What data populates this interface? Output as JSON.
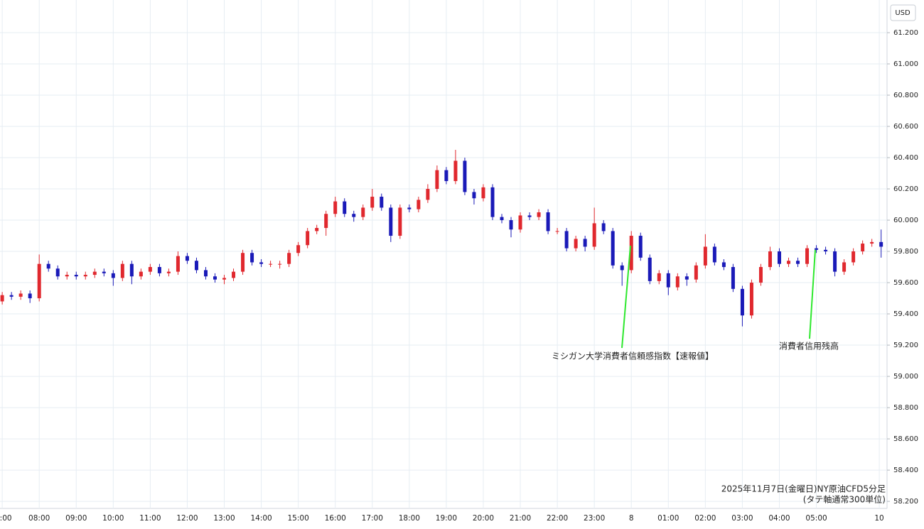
{
  "chart_data": {
    "type": "candlestick",
    "currency": "USD",
    "title": "2025年11月7日(金曜日)NY原油CFD5分足",
    "subtitle": "(タテ軸通常300単位)",
    "up_color": "#e0282e",
    "down_color": "#1a1ab8",
    "annotation_color": "#2ee82e",
    "grid": true,
    "annotations": [
      {
        "text": "ミシガン大学消費者信頼感指数【速報値】"
      },
      {
        "text": "消費者信用残高"
      }
    ],
    "x": [
      0,
      0.25,
      0.5,
      0.75,
      1,
      1.25,
      1.5,
      1.75,
      2,
      2.25,
      2.5,
      2.75,
      3,
      3.25,
      3.5,
      3.75,
      4,
      4.25,
      4.5,
      4.75,
      5,
      5.25,
      5.5,
      5.75,
      6,
      6.25,
      6.5,
      6.75,
      7,
      7.25,
      7.5,
      7.75,
      8,
      8.25,
      8.5,
      8.75,
      9,
      9.25,
      9.5,
      9.75,
      10,
      10.25,
      10.5,
      10.75,
      11,
      11.25,
      11.5,
      11.75,
      12,
      12.25,
      12.5,
      12.75,
      13,
      13.25,
      13.5,
      13.75,
      14,
      14.25,
      14.5,
      14.75,
      15,
      15.25,
      15.5,
      15.75,
      16,
      16.25,
      16.5,
      16.75,
      17,
      17.25,
      17.5,
      17.75,
      18,
      18.25,
      18.5,
      18.75,
      19,
      19.25,
      19.5,
      19.75,
      20,
      20.25,
      20.5,
      20.75,
      21,
      21.25,
      21.5,
      21.75,
      22,
      22.25,
      22.5,
      22.75,
      23,
      23.25,
      23.5,
      23.75
    ],
    "open": [
      59.48,
      59.52,
      59.51,
      59.53,
      59.5,
      59.72,
      59.69,
      59.64,
      59.65,
      59.64,
      59.65,
      59.67,
      59.66,
      59.63,
      59.72,
      59.64,
      59.67,
      59.7,
      59.66,
      59.67,
      59.77,
      59.74,
      59.68,
      59.64,
      59.62,
      59.63,
      59.67,
      59.79,
      59.73,
      59.72,
      59.72,
      59.72,
      59.79,
      59.84,
      59.93,
      59.95,
      60.04,
      60.12,
      60.04,
      60.02,
      60.08,
      60.15,
      60.08,
      59.9,
      60.08,
      60.07,
      60.13,
      60.2,
      60.32,
      60.25,
      60.38,
      60.18,
      60.14,
      60.21,
      60.02,
      60.0,
      59.94,
      60.03,
      60.02,
      60.05,
      59.93,
      59.93,
      59.82,
      59.88,
      59.83,
      59.98,
      59.93,
      59.71,
      59.68,
      59.9,
      59.76,
      59.61,
      59.66,
      59.57,
      59.64,
      59.62,
      59.71,
      59.83,
      59.73,
      59.7,
      59.56,
      59.39,
      59.6,
      59.7,
      59.8,
      59.72,
      59.74,
      59.72,
      59.82,
      59.81,
      59.8,
      59.67,
      59.73,
      59.8,
      59.85,
      59.86
    ],
    "high": [
      59.54,
      59.54,
      59.55,
      59.55,
      59.78,
      59.74,
      59.71,
      59.67,
      59.67,
      59.67,
      59.69,
      59.69,
      59.68,
      59.74,
      59.74,
      59.69,
      59.72,
      59.72,
      59.69,
      59.8,
      59.79,
      59.76,
      59.7,
      59.66,
      59.65,
      59.69,
      59.81,
      59.81,
      59.75,
      59.74,
      59.74,
      59.81,
      59.86,
      59.95,
      59.97,
      60.06,
      60.15,
      60.14,
      60.06,
      60.1,
      60.2,
      60.17,
      60.1,
      60.1,
      60.1,
      60.15,
      60.23,
      60.35,
      60.34,
      60.45,
      60.4,
      60.2,
      60.23,
      60.23,
      60.04,
      60.02,
      60.05,
      60.05,
      60.07,
      60.07,
      59.95,
      59.95,
      59.9,
      59.9,
      60.08,
      60.0,
      59.95,
      59.73,
      59.93,
      59.92,
      59.78,
      59.68,
      59.68,
      59.66,
      59.66,
      59.73,
      59.91,
      59.85,
      59.75,
      59.72,
      59.58,
      59.62,
      59.72,
      59.83,
      59.82,
      59.76,
      59.76,
      59.84,
      59.84,
      59.83,
      59.82,
      59.75,
      59.82,
      59.87,
      59.88,
      59.94
    ],
    "low": [
      59.46,
      59.49,
      59.49,
      59.47,
      59.48,
      59.67,
      59.62,
      59.62,
      59.62,
      59.62,
      59.63,
      59.64,
      59.58,
      59.61,
      59.59,
      59.62,
      59.65,
      59.64,
      59.64,
      59.65,
      59.72,
      59.66,
      59.62,
      59.6,
      59.59,
      59.61,
      59.65,
      59.71,
      59.7,
      59.7,
      59.69,
      59.7,
      59.77,
      59.82,
      59.91,
      59.9,
      60.02,
      60.02,
      59.99,
      60.0,
      60.06,
      60.06,
      59.86,
      59.88,
      60.05,
      60.05,
      60.11,
      60.18,
      60.23,
      60.23,
      60.16,
      60.1,
      60.12,
      60.0,
      59.98,
      59.89,
      59.92,
      60.0,
      60.0,
      59.91,
      59.91,
      59.8,
      59.8,
      59.8,
      59.81,
      59.91,
      59.69,
      59.58,
      59.66,
      59.74,
      59.59,
      59.59,
      59.52,
      59.55,
      59.58,
      59.6,
      59.69,
      59.71,
      59.68,
      59.54,
      59.32,
      59.37,
      59.58,
      59.68,
      59.7,
      59.7,
      59.7,
      59.7,
      59.79,
      59.78,
      59.64,
      59.65,
      59.71,
      59.78,
      59.83,
      59.76
    ],
    "close": [
      59.52,
      59.51,
      59.53,
      59.5,
      59.72,
      59.69,
      59.64,
      59.65,
      59.64,
      59.65,
      59.67,
      59.66,
      59.63,
      59.72,
      59.64,
      59.67,
      59.7,
      59.66,
      59.67,
      59.77,
      59.74,
      59.68,
      59.64,
      59.62,
      59.63,
      59.67,
      59.79,
      59.73,
      59.72,
      59.72,
      59.72,
      59.79,
      59.84,
      59.93,
      59.95,
      60.04,
      60.12,
      60.04,
      60.02,
      60.08,
      60.15,
      60.08,
      59.9,
      60.08,
      60.07,
      60.13,
      60.2,
      60.32,
      60.25,
      60.38,
      60.18,
      60.14,
      60.21,
      60.02,
      60.0,
      59.94,
      60.03,
      60.02,
      60.05,
      59.93,
      59.93,
      59.82,
      59.88,
      59.83,
      59.98,
      59.93,
      59.71,
      59.68,
      59.9,
      59.76,
      59.61,
      59.66,
      59.57,
      59.64,
      59.62,
      59.71,
      59.83,
      59.73,
      59.7,
      59.56,
      59.39,
      59.6,
      59.7,
      59.8,
      59.72,
      59.74,
      59.72,
      59.82,
      59.81,
      59.8,
      59.67,
      59.73,
      59.8,
      59.85,
      59.86,
      59.83
    ],
    "xlim": [
      -0.06,
      23.91
    ],
    "xticks": [
      {
        "value": 0,
        "label": ":00"
      },
      {
        "value": 1,
        "label": "08:00"
      },
      {
        "value": 2,
        "label": "09:00"
      },
      {
        "value": 3,
        "label": "10:00"
      },
      {
        "value": 4,
        "label": "11:00"
      },
      {
        "value": 5,
        "label": "12:00"
      },
      {
        "value": 6,
        "label": "13:00"
      },
      {
        "value": 7,
        "label": "14:00"
      },
      {
        "value": 8,
        "label": "15:00"
      },
      {
        "value": 9,
        "label": "16:00"
      },
      {
        "value": 10,
        "label": "17:00"
      },
      {
        "value": 11,
        "label": "18:00"
      },
      {
        "value": 12,
        "label": "19:00"
      },
      {
        "value": 13,
        "label": "20:00"
      },
      {
        "value": 14,
        "label": "21:00"
      },
      {
        "value": 15,
        "label": "22:00"
      },
      {
        "value": 16,
        "label": "23:00"
      },
      {
        "value": 17,
        "label": "8"
      },
      {
        "value": 18,
        "label": "01:00"
      },
      {
        "value": 19,
        "label": "02:00"
      },
      {
        "value": 20,
        "label": "03:00"
      },
      {
        "value": 21,
        "label": "04:00"
      },
      {
        "value": 22,
        "label": "05:00"
      },
      {
        "value": 23.7,
        "label": "10"
      }
    ],
    "ylim": [
      58.155,
      61.409
    ],
    "yticks": [
      {
        "value": 58.2,
        "label": "58.200"
      },
      {
        "value": 58.4,
        "label": "58.400"
      },
      {
        "value": 58.6,
        "label": "58.600"
      },
      {
        "value": 58.8,
        "label": "58.800"
      },
      {
        "value": 59.0,
        "label": "59.000"
      },
      {
        "value": 59.2,
        "label": "59.200"
      },
      {
        "value": 59.4,
        "label": "59.400"
      },
      {
        "value": 59.6,
        "label": "59.600"
      },
      {
        "value": 59.8,
        "label": "59.800"
      },
      {
        "value": 60.0,
        "label": "60.000"
      },
      {
        "value": 60.2,
        "label": "60.200"
      },
      {
        "value": 60.4,
        "label": "60.400"
      },
      {
        "value": 60.6,
        "label": "60.600"
      },
      {
        "value": 60.8,
        "label": "60.800"
      },
      {
        "value": 61.0,
        "label": "61.000"
      },
      {
        "value": 61.2,
        "label": "61.200"
      }
    ]
  }
}
